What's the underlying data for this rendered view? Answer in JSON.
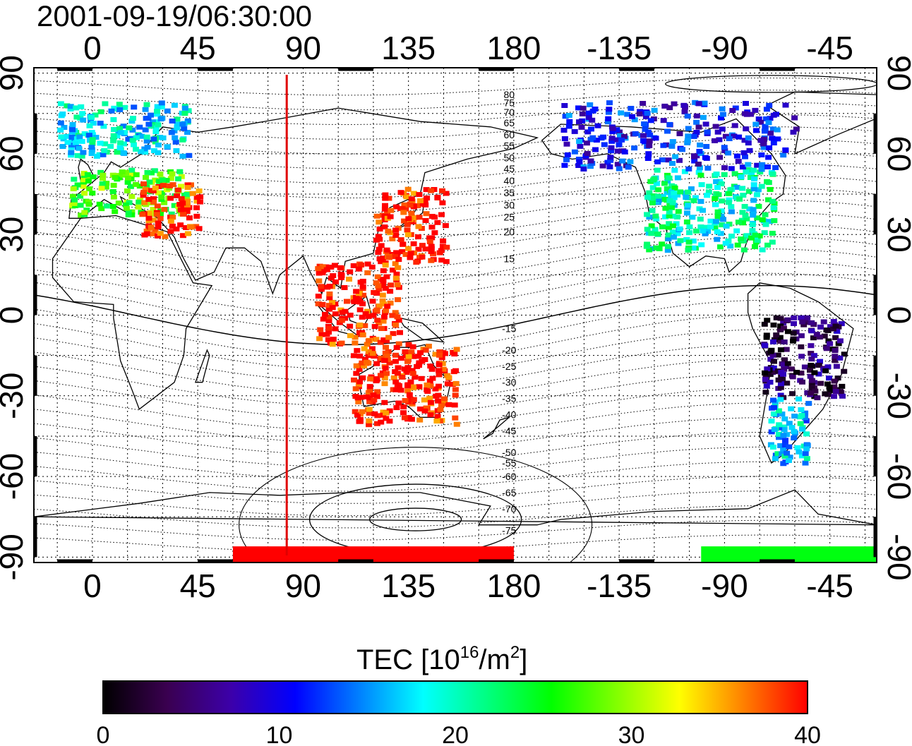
{
  "title": "2001-09-19/06:30:00",
  "map": {
    "x_ticks_top": [
      "0",
      "45",
      "90",
      "135",
      "180",
      "-135",
      "-90",
      "-45"
    ],
    "x_ticks_bottom": [
      "0",
      "45",
      "90",
      "135",
      "180",
      "-135",
      "-90",
      "-45"
    ],
    "y_ticks_left": [
      "90",
      "60",
      "30",
      "0",
      "-30",
      "-60",
      "-90"
    ],
    "y_ticks_right": [
      "90",
      "60",
      "30",
      "0",
      "-30",
      "-60",
      "-90"
    ],
    "x_tick_values": [
      0,
      45,
      90,
      135,
      180,
      225,
      270,
      315
    ],
    "y_tick_values": [
      90,
      60,
      30,
      0,
      -30,
      -60,
      -90
    ],
    "lon_range": [
      -25,
      335
    ],
    "lat_range": [
      -92,
      92
    ],
    "grid": "dotted",
    "meridian_marker_lon": 83,
    "contour_labels": [
      "80",
      "75",
      "70",
      "65",
      "60",
      "55",
      "50",
      "45",
      "40",
      "35",
      "30",
      "25",
      "20",
      "15",
      "-15",
      "-20",
      "-25",
      "-30",
      "-35",
      "-40",
      "-45",
      "-50",
      "-55",
      "-60",
      "-65",
      "-70",
      "-75"
    ],
    "contour_label_lats": [
      82,
      79,
      75.5,
      71.5,
      67,
      63,
      58.5,
      54.5,
      50,
      45.5,
      41,
      36.5,
      31,
      21,
      -5,
      -13,
      -19,
      -25,
      -31,
      -37,
      -43,
      -51,
      -55,
      -60,
      -66,
      -72,
      -80
    ],
    "contour_label_lon": 178
  },
  "colorbar": {
    "title": "TEC  [10",
    "title_sup": "16",
    "title_mid": "/m",
    "title_sup2": "2",
    "title_end": "]",
    "min": 0,
    "max": 40,
    "tick_labels": [
      "0",
      "10",
      "20",
      "30",
      "40"
    ],
    "tick_values": [
      0,
      10,
      20,
      30,
      40
    ],
    "colors": [
      "#000000",
      "#3a0050",
      "#3c00aa",
      "#0000ff",
      "#0080ff",
      "#00ffff",
      "#00ff80",
      "#00ff00",
      "#80ff00",
      "#ffff00",
      "#ff8000",
      "#ff0000"
    ]
  },
  "chart_data": {
    "type": "heatmap",
    "title": "2001-09-19/06:30:00",
    "colorbar_label": "TEC [10^16/m^2]",
    "value_range": [
      0,
      40
    ],
    "regions": [
      {
        "lon": [
          -15,
          40
        ],
        "lat": [
          60,
          80
        ],
        "tec": 18
      },
      {
        "lon": [
          -10,
          40
        ],
        "lat": [
          38,
          55
        ],
        "tec": 27
      },
      {
        "lon": [
          20,
          45
        ],
        "lat": [
          30,
          50
        ],
        "tec": 40
      },
      {
        "lon": [
          120,
          150
        ],
        "lat": [
          20,
          48
        ],
        "tec": 40
      },
      {
        "lon": [
          95,
          130
        ],
        "lat": [
          -10,
          20
        ],
        "tec": 40
      },
      {
        "lon": [
          110,
          155
        ],
        "lat": [
          -40,
          -10
        ],
        "tec": 40
      },
      {
        "lon": [
          235,
          290
        ],
        "lat": [
          25,
          55
        ],
        "tec": 20
      },
      {
        "lon": [
          200,
          300
        ],
        "lat": [
          55,
          80
        ],
        "tec": 11
      },
      {
        "lon": [
          285,
          320
        ],
        "lat": [
          -30,
          0
        ],
        "tec": 4
      },
      {
        "lon": [
          288,
          305
        ],
        "lat": [
          -55,
          -30
        ],
        "tec": 17
      },
      {
        "lon": [
          60,
          180
        ],
        "lat": [
          -92,
          -86
        ],
        "tec": 40
      },
      {
        "lon": [
          260,
          335
        ],
        "lat": [
          -92,
          -86
        ],
        "tec": 25
      }
    ]
  }
}
